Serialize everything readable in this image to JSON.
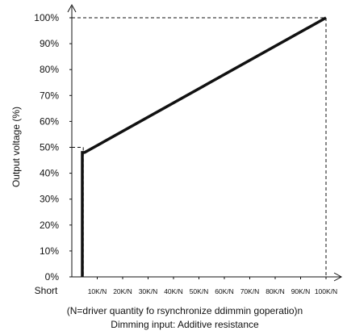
{
  "chart_data": {
    "type": "line",
    "ylabel": "Output voltage (%)",
    "x_caption_lines": [
      "(N=driver quantity fo rsynchronize ddimmin goperatio)n",
      "Dimming input: Additive resistance"
    ],
    "x_tick_labels": [
      "Short",
      "10K/N",
      "20K/N",
      "30K/N",
      "40K/N",
      "50K/N",
      "60K/N",
      "70K/N",
      "80K/N",
      "90K/N",
      "100K/N"
    ],
    "y_tick_labels": [
      "0%",
      "10%",
      "20%",
      "30%",
      "40%",
      "50%",
      "60%",
      "70%",
      "80%",
      "90%",
      "100%"
    ],
    "ylim": [
      0,
      100
    ],
    "series": [
      {
        "x": [
          0,
          0,
          0.5,
          10
        ],
        "y": [
          0,
          48,
          48,
          100
        ]
      }
    ],
    "reference_lines": [
      {
        "from": [
          0,
          50
        ],
        "to": [
          0.45,
          50
        ]
      },
      {
        "from": [
          0.45,
          50
        ],
        "to": [
          0.45,
          0
        ]
      },
      {
        "from": [
          0,
          100
        ],
        "to": [
          10,
          100
        ]
      },
      {
        "from": [
          10,
          100
        ],
        "to": [
          10,
          0
        ]
      }
    ],
    "colors": {
      "line": "#111111",
      "axis": "#111111",
      "text": "#111111"
    }
  }
}
